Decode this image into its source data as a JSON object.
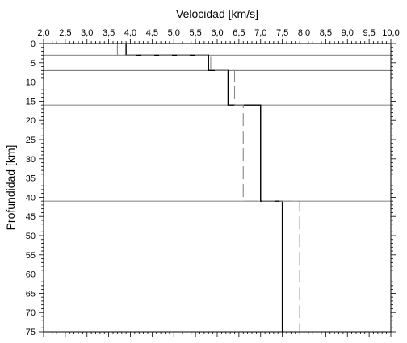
{
  "chart_data": {
    "type": "line",
    "xlabel": "Velocidad [km/s]",
    "ylabel": "Profundidad [km]",
    "xlim": [
      2.0,
      10.0
    ],
    "ylim": [
      0,
      75
    ],
    "y_inverted": true,
    "x_axis_position": "top",
    "x_ticks": [
      2.0,
      2.5,
      3.0,
      3.5,
      4.0,
      4.5,
      5.0,
      5.5,
      6.0,
      6.5,
      7.0,
      7.5,
      8.0,
      8.5,
      9.0,
      9.5,
      10.0
    ],
    "x_tick_labels": [
      "2,0",
      "2,5",
      "3,0",
      "3,5",
      "4,0",
      "4,5",
      "5,0",
      "5,5",
      "6,0",
      "6,5",
      "7,0",
      "7,5",
      "8,0",
      "8,5",
      "9,0",
      "9,5",
      "10,0"
    ],
    "y_ticks": [
      0,
      5,
      10,
      15,
      20,
      25,
      30,
      35,
      40,
      45,
      50,
      55,
      60,
      65,
      70,
      75
    ],
    "y_tick_labels": [
      "0",
      "5",
      "10",
      "15",
      "20",
      "25",
      "30",
      "35",
      "40",
      "45",
      "50",
      "55",
      "60",
      "65",
      "70",
      "75"
    ],
    "layer_boundaries": [
      3,
      7,
      16,
      41
    ],
    "grid": false,
    "series": [
      {
        "style": "solid",
        "color": "#000000",
        "x": [
          3.9,
          3.9,
          5.8,
          5.8,
          6.25,
          6.25,
          7.0,
          7.0,
          7.5,
          7.5
        ],
        "y": [
          0,
          3,
          3,
          7,
          7,
          16,
          16,
          41,
          41,
          75
        ]
      },
      {
        "style": "dashed",
        "color": "#888888",
        "x": [
          3.7,
          3.7,
          5.85,
          5.85,
          6.4,
          6.4,
          6.6,
          6.6,
          7.9,
          7.9
        ],
        "y": [
          0,
          3,
          3,
          7,
          7,
          16,
          16,
          41,
          41,
          75
        ]
      }
    ]
  }
}
